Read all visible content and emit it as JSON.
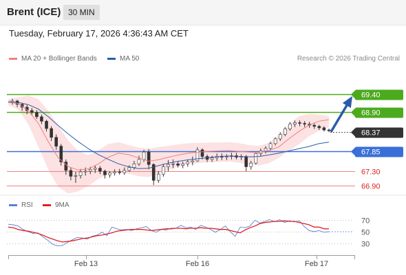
{
  "header": {
    "title": "Brent (ICE)",
    "timeframe": "30 MIN"
  },
  "timestamp": "Tuesday, February 17, 2026 4:36:43 AM CET",
  "legend": {
    "ma20_label": "MA 20 + Bollinger Bands",
    "ma20_color": "#f08080",
    "ma50_label": "MA 50",
    "ma50_color": "#2a5caa"
  },
  "copyright": "Research © 2026 Trading Central",
  "rsi_legend": {
    "rsi_label": "RSI",
    "rsi_color": "#5b7fd6",
    "ma_label": "9MA",
    "ma_color": "#e02020"
  },
  "chart_data": [
    {
      "type": "candlestick",
      "x_tick_labels": [
        "Feb 13",
        "Feb 16",
        "Feb 17"
      ],
      "ylim": [
        66.7,
        69.9
      ],
      "ma20_close": [
        69.17,
        69.14,
        68.95,
        68.6,
        68.1,
        67.66,
        67.42,
        67.33,
        67.36,
        67.5,
        67.68,
        67.79,
        67.75,
        67.66,
        67.57,
        67.61,
        67.68,
        67.74,
        67.79,
        67.82,
        67.84,
        67.85,
        67.86,
        67.84,
        67.82,
        67.8,
        67.86,
        67.96,
        68.18,
        68.38,
        68.55,
        68.66,
        68.7
      ],
      "ma50_close": [
        69.19,
        69.17,
        69.11,
        68.99,
        68.78,
        68.54,
        68.31,
        68.1,
        67.91,
        67.75,
        67.62,
        67.5,
        67.42,
        67.37,
        67.38,
        67.45,
        67.52,
        67.57,
        67.61,
        67.64,
        67.67,
        67.7,
        67.71,
        67.7,
        67.69,
        67.7,
        67.74,
        67.79,
        67.85,
        67.91,
        67.97,
        68.05,
        68.09
      ],
      "bollinger_upper": [
        69.27,
        69.31,
        69.36,
        69.26,
        68.94,
        68.53,
        68.13,
        67.84,
        67.74,
        67.87,
        68.04,
        68.09,
        68.01,
        67.94,
        67.91,
        67.96,
        67.99,
        68.03,
        68.06,
        68.07,
        68.08,
        68.08,
        68.09,
        68.06,
        68.01,
        67.99,
        68.07,
        68.28,
        68.57,
        68.8,
        68.86,
        68.84,
        68.8
      ],
      "bollinger_lower": [
        69.1,
        68.97,
        68.58,
        67.97,
        67.33,
        66.87,
        66.69,
        66.75,
        66.9,
        67.09,
        67.22,
        67.28,
        67.23,
        67.16,
        67.14,
        67.23,
        67.34,
        67.42,
        67.49,
        67.52,
        67.54,
        67.55,
        67.56,
        67.53,
        67.47,
        67.45,
        67.52,
        67.66,
        67.85,
        68.03,
        68.25,
        68.4,
        68.49
      ],
      "ohlc": [
        [
          69.18,
          69.27,
          69.11,
          69.21
        ],
        [
          69.21,
          69.24,
          69.04,
          69.12
        ],
        [
          69.12,
          69.16,
          68.94,
          69.04
        ],
        [
          69.04,
          69.1,
          68.85,
          68.95
        ],
        [
          68.95,
          69.02,
          68.82,
          68.9
        ],
        [
          68.9,
          68.96,
          68.72,
          68.78
        ],
        [
          68.78,
          68.84,
          68.58,
          68.66
        ],
        [
          68.66,
          68.7,
          68.38,
          68.46
        ],
        [
          68.46,
          68.52,
          68.12,
          68.22
        ],
        [
          68.22,
          68.3,
          67.88,
          67.98
        ],
        [
          67.98,
          68.04,
          67.45,
          67.55
        ],
        [
          67.55,
          67.62,
          67.2,
          67.32
        ],
        [
          67.32,
          67.4,
          67.05,
          67.16
        ],
        [
          67.16,
          67.28,
          66.98,
          67.18
        ],
        [
          67.18,
          67.36,
          67.1,
          67.28
        ],
        [
          67.28,
          67.4,
          67.18,
          67.3
        ],
        [
          67.3,
          67.42,
          67.22,
          67.35
        ],
        [
          67.35,
          67.45,
          67.25,
          67.38
        ],
        [
          67.38,
          67.44,
          67.22,
          67.3
        ],
        [
          67.3,
          67.34,
          67.1,
          67.2
        ],
        [
          67.2,
          67.3,
          67.12,
          67.25
        ],
        [
          67.25,
          67.35,
          67.18,
          67.28
        ],
        [
          67.28,
          67.36,
          67.2,
          67.26
        ],
        [
          67.26,
          67.4,
          67.2,
          67.32
        ],
        [
          67.32,
          67.46,
          67.28,
          67.4
        ],
        [
          67.4,
          67.58,
          67.34,
          67.5
        ],
        [
          67.5,
          67.72,
          67.44,
          67.62
        ],
        [
          67.62,
          67.88,
          67.55,
          67.82
        ],
        [
          67.82,
          67.9,
          67.35,
          67.48
        ],
        [
          67.48,
          67.52,
          66.92,
          67.05
        ],
        [
          67.05,
          67.3,
          66.98,
          67.22
        ],
        [
          67.22,
          67.5,
          67.15,
          67.42
        ],
        [
          67.42,
          67.6,
          67.3,
          67.48
        ],
        [
          67.48,
          67.62,
          67.38,
          67.5
        ],
        [
          67.5,
          67.58,
          67.4,
          67.46
        ],
        [
          67.46,
          67.56,
          67.38,
          67.5
        ],
        [
          67.5,
          67.62,
          67.42,
          67.55
        ],
        [
          67.55,
          67.7,
          67.46,
          67.58
        ],
        [
          67.58,
          67.95,
          67.55,
          67.88
        ],
        [
          67.88,
          67.92,
          67.62,
          67.7
        ],
        [
          67.7,
          67.75,
          67.55,
          67.62
        ],
        [
          67.62,
          67.72,
          67.55,
          67.66
        ],
        [
          67.66,
          67.78,
          67.58,
          67.7
        ],
        [
          67.7,
          67.78,
          67.6,
          67.68
        ],
        [
          67.68,
          67.76,
          67.6,
          67.7
        ],
        [
          67.7,
          67.8,
          67.62,
          67.72
        ],
        [
          67.72,
          67.8,
          67.62,
          67.68
        ],
        [
          67.68,
          67.76,
          67.6,
          67.7
        ],
        [
          67.7,
          67.74,
          67.3,
          67.42
        ],
        [
          67.42,
          67.58,
          67.34,
          67.52
        ],
        [
          67.52,
          67.8,
          67.48,
          67.78
        ],
        [
          67.78,
          67.92,
          67.7,
          67.85
        ],
        [
          67.85,
          67.98,
          67.78,
          67.92
        ],
        [
          67.92,
          68.1,
          67.86,
          68.05
        ],
        [
          68.05,
          68.22,
          68.0,
          68.18
        ],
        [
          68.18,
          68.36,
          68.12,
          68.3
        ],
        [
          68.3,
          68.5,
          68.25,
          68.45
        ],
        [
          68.45,
          68.64,
          68.4,
          68.58
        ],
        [
          68.58,
          68.68,
          68.5,
          68.62
        ],
        [
          68.62,
          68.68,
          68.52,
          68.6
        ],
        [
          68.6,
          68.66,
          68.5,
          68.58
        ],
        [
          68.58,
          68.64,
          68.48,
          68.55
        ],
        [
          68.55,
          68.6,
          68.45,
          68.52
        ],
        [
          68.52,
          68.56,
          68.42,
          68.48
        ],
        [
          68.48,
          68.52,
          68.38,
          68.42
        ],
        [
          68.42,
          68.46,
          68.36,
          68.4
        ]
      ],
      "levels": [
        {
          "value": "69.40",
          "color": "#4caa1e",
          "style": "solid",
          "label_bg": "#4caa1e",
          "label_color": "#ffffff"
        },
        {
          "value": "68.90",
          "color": "#4caa1e",
          "style": "solid",
          "label_bg": "#4caa1e",
          "label_color": "#ffffff"
        },
        {
          "value": "68.37",
          "color": "#555555",
          "style": "dotted",
          "label_bg": "#333333",
          "label_color": "#ffffff"
        },
        {
          "value": "67.85",
          "color": "#3a6fd8",
          "style": "solid",
          "label_bg": "#3a6fd8",
          "label_color": "#ffffff"
        },
        {
          "value": "67.30",
          "color": "#f08080",
          "style": "solid",
          "label_bg": "",
          "label_color": "#e02020"
        },
        {
          "value": "66.90",
          "color": "#f08080",
          "style": "solid",
          "label_bg": "",
          "label_color": "#e02020"
        }
      ],
      "arrow_direction": "up",
      "arrow_color": "#2a5caa"
    },
    {
      "type": "line",
      "series": [
        {
          "name": "RSI",
          "values": [
            63,
            62,
            60,
            54,
            50,
            47,
            48,
            41,
            35,
            28,
            25,
            26,
            31,
            36,
            40,
            39,
            37,
            42,
            44,
            49,
            43,
            58,
            55,
            53,
            54,
            52,
            55,
            57,
            59,
            52,
            49,
            54,
            53,
            56,
            56,
            61,
            57,
            58,
            54,
            61,
            58,
            54,
            49,
            54,
            60,
            50,
            42,
            58,
            57,
            60,
            70,
            65,
            68,
            71,
            67,
            71,
            66,
            69,
            67,
            69,
            59,
            52,
            50,
            52,
            49,
            50
          ],
          "color": "#5b7fd6"
        },
        {
          "name": "9MA",
          "values": [
            58,
            57,
            54,
            52,
            51,
            49,
            47,
            44,
            40,
            37,
            34,
            32,
            33,
            34,
            36,
            38,
            39,
            41,
            43,
            44,
            46,
            48,
            51,
            52,
            53,
            54,
            54,
            54,
            53,
            52,
            53,
            54,
            55,
            55,
            56,
            56,
            55,
            56,
            56,
            57,
            56,
            56,
            55,
            54,
            54,
            52,
            50,
            48,
            53,
            57,
            60,
            64,
            66,
            67,
            68,
            68,
            69,
            68,
            68,
            66,
            64,
            62,
            58,
            58,
            55,
            55
          ],
          "color": "#e02020"
        }
      ],
      "ylim": [
        20,
        80
      ],
      "y_ticks": [
        "70",
        "50",
        "30"
      ],
      "x_tick_labels": [
        "Feb 13",
        "Feb 16",
        "Feb 17"
      ]
    }
  ]
}
